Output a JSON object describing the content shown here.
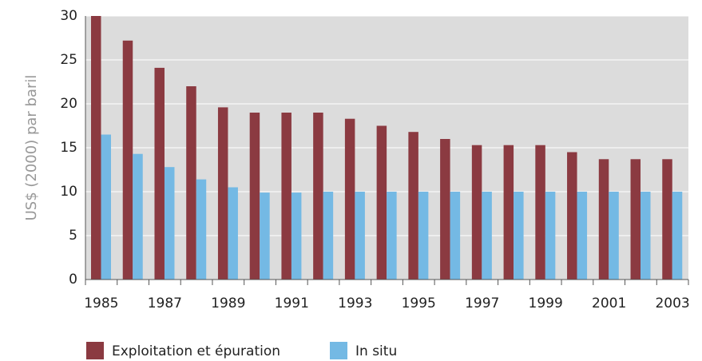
{
  "chart_data": {
    "type": "bar",
    "ylabel": "US$ (2000) par baril",
    "categories": [
      "1985",
      null,
      "1987",
      null,
      "1989",
      null,
      "1991",
      null,
      "1993",
      null,
      "1995",
      null,
      "1997",
      null,
      "1999",
      null,
      "2001",
      null,
      "2003"
    ],
    "series": [
      {
        "name": "Exploitation et épuration",
        "color": "#8b3a41",
        "values": [
          30,
          27.2,
          24.1,
          22,
          19.6,
          19,
          19,
          19,
          18.3,
          17.5,
          16.8,
          16,
          15.3,
          15.3,
          15.3,
          14.5,
          13.7,
          13.7,
          13.7
        ]
      },
      {
        "name": "In situ",
        "color": "#74b9e4",
        "values": [
          16.5,
          14.3,
          12.8,
          11.4,
          10.5,
          9.9,
          9.9,
          10,
          10,
          10,
          10,
          10,
          10,
          10,
          10,
          10,
          10,
          10,
          10
        ]
      }
    ],
    "ylim": [
      0,
      30
    ],
    "yticks": [
      0,
      5,
      10,
      15,
      20,
      25,
      30
    ],
    "grid": true
  }
}
